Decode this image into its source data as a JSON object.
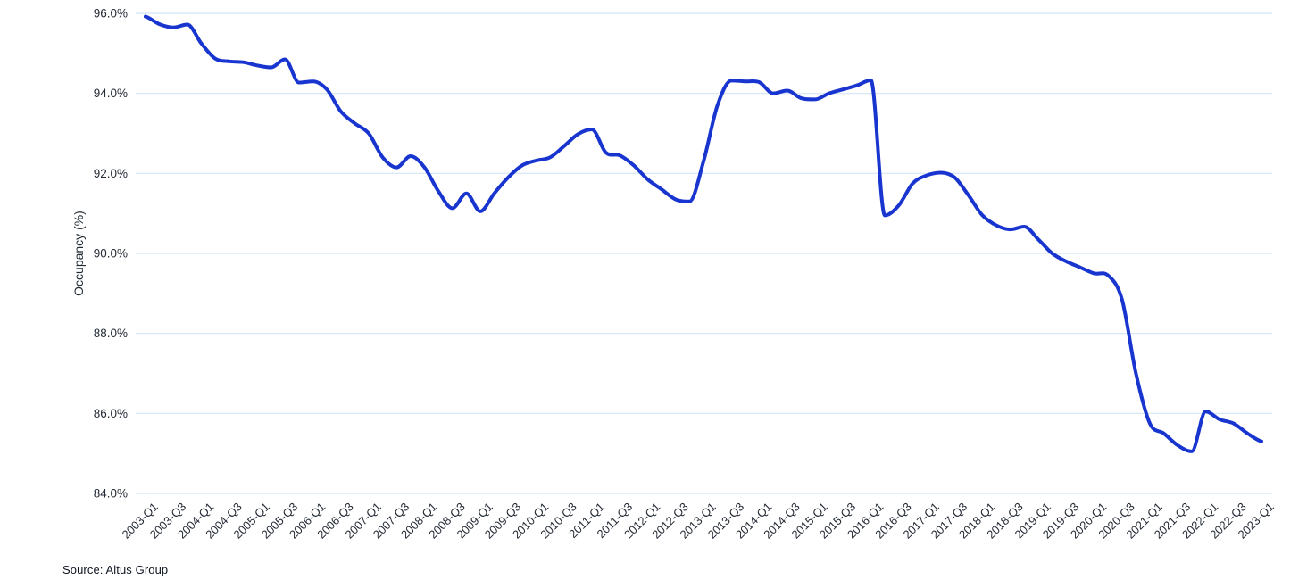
{
  "chart": {
    "source": "Source: Altus Group",
    "y_ticks": [
      "96.0%",
      "94.0%",
      "92.0%",
      "90.0%",
      "88.0%",
      "86.0%",
      "84.0%"
    ],
    "y_tick_values": [
      96,
      94,
      92,
      90,
      88,
      86,
      84
    ],
    "x_tick_labels": [
      "2003-Q1",
      "2003-Q3",
      "2004-Q1",
      "2004-Q3",
      "2005-Q1",
      "2005-Q3",
      "2006-Q1",
      "2006-Q3",
      "2007-Q1",
      "2007-Q3",
      "2008-Q1",
      "2008-Q3",
      "2009-Q1",
      "2009-Q3",
      "2010-Q1",
      "2010-Q3",
      "2011-Q1",
      "2011-Q3",
      "2012-Q1",
      "2012-Q3",
      "2013-Q1",
      "2013-Q3",
      "2014-Q1",
      "2014-Q3",
      "2015-Q1",
      "2015-Q3",
      "2016-Q1",
      "2016-Q3",
      "2017-Q1",
      "2017-Q3",
      "2018-Q1",
      "2018-Q3",
      "2019-Q1",
      "2019-Q3",
      "2020-Q1",
      "2020-Q3",
      "2021-Q1",
      "2021-Q3",
      "2022-Q1",
      "2022-Q3",
      "2023-Q1"
    ],
    "x_label_every": 2,
    "colors": {
      "line": "#1835cf",
      "grid": "#d3e4f3",
      "tick_text": "#242b35",
      "axis_title_text": "#242b35",
      "source_text": "#0d1520",
      "background": "#ffffff"
    }
  },
  "chart_data": {
    "type": "line",
    "title": "",
    "xlabel": "",
    "ylabel": "Occupancy (%)",
    "ylim": [
      84,
      96
    ],
    "grid": "horizontal-only",
    "legend": "none",
    "line_style": "smooth",
    "categories": [
      "2003-Q1",
      "2003-Q2",
      "2003-Q3",
      "2003-Q4",
      "2004-Q1",
      "2004-Q2",
      "2004-Q3",
      "2004-Q4",
      "2005-Q1",
      "2005-Q2",
      "2005-Q3",
      "2005-Q4",
      "2006-Q1",
      "2006-Q2",
      "2006-Q3",
      "2006-Q4",
      "2007-Q1",
      "2007-Q2",
      "2007-Q3",
      "2007-Q4",
      "2008-Q1",
      "2008-Q2",
      "2008-Q3",
      "2008-Q4",
      "2009-Q1",
      "2009-Q2",
      "2009-Q3",
      "2009-Q4",
      "2010-Q1",
      "2010-Q2",
      "2010-Q3",
      "2010-Q4",
      "2011-Q1",
      "2011-Q2",
      "2011-Q3",
      "2011-Q4",
      "2012-Q1",
      "2012-Q2",
      "2012-Q3",
      "2012-Q4",
      "2013-Q1",
      "2013-Q2",
      "2013-Q3",
      "2013-Q4",
      "2014-Q1",
      "2014-Q2",
      "2014-Q3",
      "2014-Q4",
      "2015-Q1",
      "2015-Q2",
      "2015-Q3",
      "2015-Q4",
      "2016-Q1",
      "2016-Q2",
      "2016-Q3",
      "2016-Q4",
      "2017-Q1",
      "2017-Q2",
      "2017-Q3",
      "2017-Q4",
      "2018-Q1",
      "2018-Q2",
      "2018-Q3",
      "2018-Q4",
      "2019-Q1",
      "2019-Q2",
      "2019-Q3",
      "2019-Q4",
      "2020-Q1",
      "2020-Q2",
      "2020-Q3",
      "2020-Q4",
      "2021-Q1",
      "2021-Q2",
      "2021-Q3",
      "2021-Q4",
      "2022-Q1",
      "2022-Q2",
      "2022-Q3",
      "2022-Q4",
      "2023-Q1"
    ],
    "series": [
      {
        "name": "Occupancy (%)",
        "values": [
          95.92,
          95.73,
          95.65,
          95.72,
          95.25,
          94.87,
          94.8,
          94.78,
          94.7,
          94.65,
          94.85,
          94.27,
          94.3,
          94.1,
          93.55,
          93.25,
          93.0,
          92.4,
          92.15,
          92.43,
          92.15,
          91.55,
          91.13,
          91.5,
          91.05,
          91.5,
          91.9,
          92.2,
          92.32,
          92.4,
          92.68,
          92.98,
          93.1,
          92.52,
          92.45,
          92.2,
          91.85,
          91.6,
          91.35,
          91.3,
          92.3,
          93.7,
          94.32,
          94.3,
          94.28,
          94.0,
          94.07,
          93.88,
          93.85,
          94.0,
          94.1,
          94.2,
          94.33,
          90.95,
          91.2,
          91.75,
          91.95,
          92.02,
          91.9,
          91.45,
          90.95,
          90.7,
          90.6,
          90.67,
          90.35,
          90.0,
          89.8,
          89.65,
          89.5,
          89.45,
          88.85,
          87.0,
          85.75,
          85.5,
          85.2,
          85.05,
          86.05,
          85.85,
          85.75,
          85.5,
          85.3
        ]
      }
    ]
  }
}
